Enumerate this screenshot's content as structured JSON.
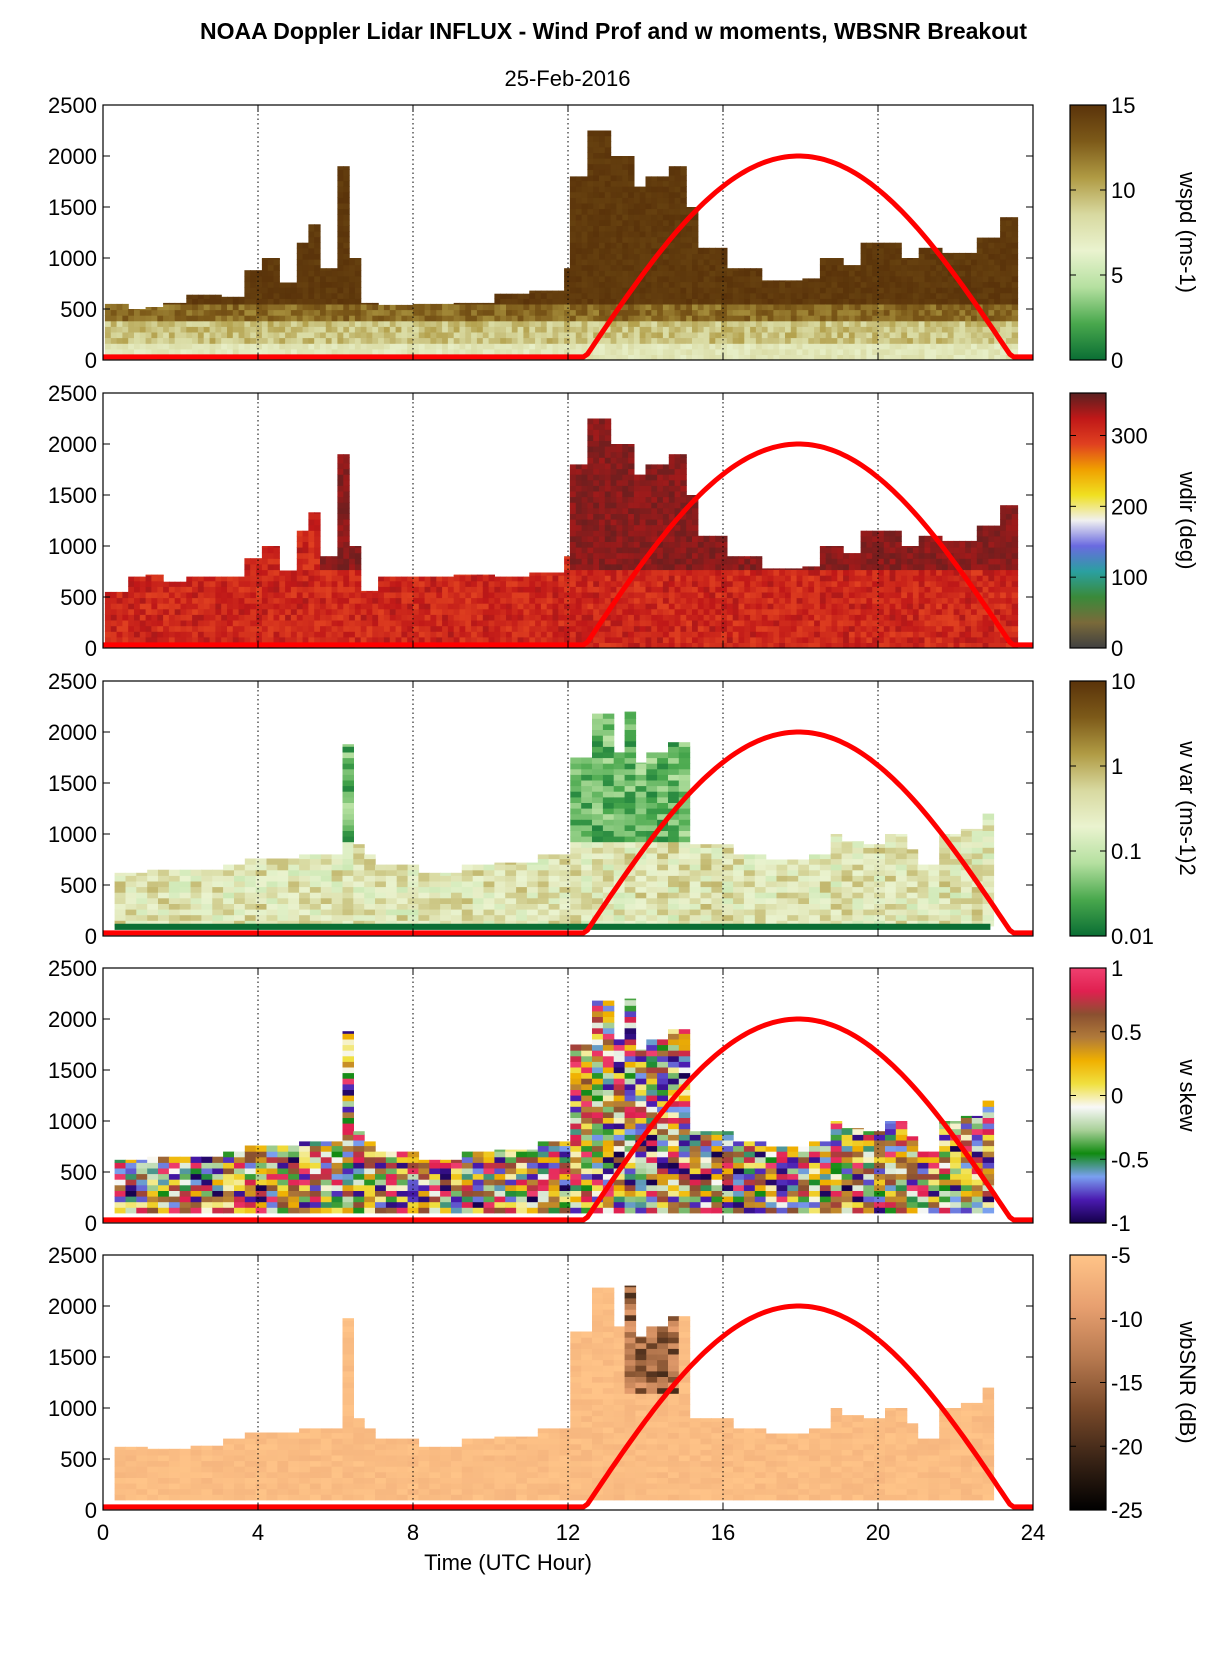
{
  "title": "NOAA Doppler Lidar INFLUX - Wind Prof and w moments, WBSNR Breakout",
  "subtitle": "25-Feb-2016",
  "chart_data": {
    "type": "heatmap",
    "xlabel": "Time (UTC Hour)",
    "xlim": [
      0,
      24
    ],
    "xticks": [
      "0",
      "4",
      "8",
      "12",
      "16",
      "20",
      "24"
    ],
    "ylim": [
      0,
      2500
    ],
    "yticks": [
      "0",
      "500",
      "1000",
      "1500",
      "2000",
      "2500"
    ],
    "grid": "dotted vertical at 4, 8, 12, 16, 20",
    "overlay_curve": {
      "color": "#ff0000",
      "description_points": [
        [
          0,
          30
        ],
        [
          12.5,
          30
        ],
        [
          14,
          760
        ],
        [
          16,
          1700
        ],
        [
          18,
          2000
        ],
        [
          20,
          1700
        ],
        [
          22,
          950
        ],
        [
          23.5,
          30
        ],
        [
          24,
          30
        ]
      ]
    },
    "panels": [
      {
        "id": "wspd",
        "colorbar_label": "wspd (ms-1)",
        "colorbar_ticks": [
          "0",
          "5",
          "10",
          "15"
        ],
        "colorbar_colors": [
          "#0a6e34",
          "#49a84d",
          "#b5e0a0",
          "#eaf3cf",
          "#d8d9a0",
          "#b09b44",
          "#7d5a19",
          "#5a330a"
        ],
        "data_top": [
          [
            0.1,
            550
          ],
          [
            0.5,
            500
          ],
          [
            1,
            520
          ],
          [
            1.5,
            560
          ],
          [
            2,
            640
          ],
          [
            3,
            620
          ],
          [
            3.5,
            880
          ],
          [
            4,
            1000
          ],
          [
            4.5,
            760
          ],
          [
            5,
            1150
          ],
          [
            5.3,
            1330
          ],
          [
            5.6,
            900
          ],
          [
            6,
            1900
          ],
          [
            6.3,
            1000
          ],
          [
            6.6,
            560
          ],
          [
            7,
            540
          ],
          [
            8,
            550
          ],
          [
            9,
            560
          ],
          [
            10,
            650
          ],
          [
            11,
            680
          ],
          [
            11.8,
            900
          ],
          [
            12,
            1800
          ],
          [
            12.5,
            2250
          ],
          [
            13,
            2000
          ],
          [
            13.6,
            1700
          ],
          [
            14,
            1800
          ],
          [
            14.5,
            1900
          ],
          [
            15,
            1500
          ],
          [
            15.3,
            1100
          ],
          [
            16,
            900
          ],
          [
            17,
            780
          ],
          [
            18,
            800
          ],
          [
            18.5,
            1000
          ],
          [
            19,
            930
          ],
          [
            19.5,
            1150
          ],
          [
            20,
            1150
          ],
          [
            20.5,
            1000
          ],
          [
            21,
            1100
          ],
          [
            21.5,
            1050
          ],
          [
            22,
            1050
          ],
          [
            22.5,
            1200
          ],
          [
            23,
            1400
          ],
          [
            23.3,
            1400
          ]
        ],
        "low_band_top_m": 300
      },
      {
        "id": "wdir",
        "colorbar_label": "wdir (deg)",
        "colorbar_ticks": [
          "0",
          "100",
          "200",
          "300"
        ],
        "colorbar_colors": [
          "#404040",
          "#7a6a3a",
          "#3a8a3a",
          "#2aa0a0",
          "#6a6ae0",
          "#f0f0f0",
          "#f0e020",
          "#f0a000",
          "#e04020",
          "#c01818",
          "#5a2020"
        ],
        "data_top": [
          [
            0.1,
            550
          ],
          [
            0.5,
            700
          ],
          [
            1,
            720
          ],
          [
            1.5,
            650
          ],
          [
            2,
            700
          ],
          [
            3,
            700
          ],
          [
            3.5,
            880
          ],
          [
            4,
            1000
          ],
          [
            4.5,
            760
          ],
          [
            5,
            1150
          ],
          [
            5.3,
            1330
          ],
          [
            5.6,
            900
          ],
          [
            6,
            1900
          ],
          [
            6.3,
            1000
          ],
          [
            6.6,
            560
          ],
          [
            7,
            700
          ],
          [
            8,
            700
          ],
          [
            9,
            720
          ],
          [
            10,
            700
          ],
          [
            11,
            740
          ],
          [
            11.8,
            900
          ],
          [
            12,
            1800
          ],
          [
            12.5,
            2250
          ],
          [
            13,
            2000
          ],
          [
            13.6,
            1700
          ],
          [
            14,
            1800
          ],
          [
            14.5,
            1900
          ],
          [
            15,
            1500
          ],
          [
            15.3,
            1100
          ],
          [
            16,
            900
          ],
          [
            17,
            780
          ],
          [
            18,
            800
          ],
          [
            18.5,
            1000
          ],
          [
            19,
            930
          ],
          [
            19.5,
            1150
          ],
          [
            20,
            1150
          ],
          [
            20.5,
            1000
          ],
          [
            21,
            1100
          ],
          [
            21.5,
            1050
          ],
          [
            22,
            1050
          ],
          [
            22.5,
            1200
          ],
          [
            23,
            1400
          ],
          [
            23.3,
            1400
          ]
        ]
      },
      {
        "id": "wvar",
        "colorbar_label": "w var (ms-1)2",
        "colorbar_ticks": [
          "0.01",
          "0.1",
          "1",
          "10"
        ],
        "colorbar_colors": [
          "#0a6e34",
          "#49a84d",
          "#b5e0a0",
          "#eaf3cf",
          "#d8d9a0",
          "#b09b44",
          "#7d5a19",
          "#5a330a"
        ],
        "data_top": [
          [
            0.3,
            620
          ],
          [
            1,
            650
          ],
          [
            2,
            650
          ],
          [
            3,
            700
          ],
          [
            3.5,
            760
          ],
          [
            4,
            760
          ],
          [
            5,
            800
          ],
          [
            6,
            1880
          ],
          [
            6.4,
            900
          ],
          [
            6.7,
            800
          ],
          [
            7,
            700
          ],
          [
            8,
            620
          ],
          [
            9,
            700
          ],
          [
            10,
            720
          ],
          [
            11,
            800
          ],
          [
            11.8,
            1100
          ],
          [
            12,
            1750
          ],
          [
            12.5,
            2180
          ],
          [
            13,
            1800
          ],
          [
            13.3,
            2200
          ],
          [
            13.6,
            1700
          ],
          [
            14,
            1800
          ],
          [
            14.5,
            1900
          ],
          [
            15,
            900
          ],
          [
            16,
            800
          ],
          [
            17,
            750
          ],
          [
            18,
            800
          ],
          [
            18.5,
            1000
          ],
          [
            19,
            930
          ],
          [
            19.5,
            900
          ],
          [
            20,
            1000
          ],
          [
            20.5,
            850
          ],
          [
            21,
            700
          ],
          [
            21.5,
            1000
          ],
          [
            22,
            1050
          ],
          [
            22.5,
            1200
          ],
          [
            22.8,
            1200
          ]
        ]
      },
      {
        "id": "wskew",
        "colorbar_label": "w skew",
        "colorbar_ticks": [
          "-1",
          "-0.5",
          "0",
          "0.5",
          "1"
        ],
        "colorbar_colors": [
          "#14004a",
          "#4a1ab0",
          "#7aa0f0",
          "#108a10",
          "#a8d098",
          "#f8f8f8",
          "#f0e040",
          "#f0b000",
          "#b07a3a",
          "#8a5030",
          "#e02050",
          "#f04070"
        ],
        "data_top": [
          [
            0.3,
            620
          ],
          [
            1,
            650
          ],
          [
            2,
            650
          ],
          [
            3,
            700
          ],
          [
            3.5,
            760
          ],
          [
            4,
            760
          ],
          [
            5,
            800
          ],
          [
            6,
            1880
          ],
          [
            6.4,
            900
          ],
          [
            6.7,
            800
          ],
          [
            7,
            700
          ],
          [
            8,
            620
          ],
          [
            9,
            700
          ],
          [
            10,
            720
          ],
          [
            11,
            800
          ],
          [
            11.8,
            1100
          ],
          [
            12,
            1750
          ],
          [
            12.5,
            2180
          ],
          [
            13,
            1800
          ],
          [
            13.3,
            2200
          ],
          [
            13.6,
            1700
          ],
          [
            14,
            1800
          ],
          [
            14.5,
            1900
          ],
          [
            15,
            900
          ],
          [
            16,
            800
          ],
          [
            17,
            750
          ],
          [
            18,
            800
          ],
          [
            18.5,
            1000
          ],
          [
            19,
            930
          ],
          [
            19.5,
            900
          ],
          [
            20,
            1000
          ],
          [
            20.5,
            850
          ],
          [
            21,
            700
          ],
          [
            21.5,
            1000
          ],
          [
            22,
            1050
          ],
          [
            22.5,
            1200
          ],
          [
            22.8,
            1200
          ]
        ]
      },
      {
        "id": "wbsnr",
        "colorbar_label": "wbSNR (dB)",
        "colorbar_ticks": [
          "-25",
          "-20",
          "-15",
          "-10",
          "-5"
        ],
        "colorbar_colors": [
          "#000000",
          "#3a2416",
          "#7a4a2a",
          "#b87a50",
          "#e8a070",
          "#ffc488"
        ],
        "data_top": [
          [
            0.3,
            620
          ],
          [
            1,
            600
          ],
          [
            2,
            630
          ],
          [
            3,
            700
          ],
          [
            3.5,
            760
          ],
          [
            4,
            760
          ],
          [
            5,
            800
          ],
          [
            6,
            1880
          ],
          [
            6.4,
            900
          ],
          [
            6.7,
            800
          ],
          [
            7,
            700
          ],
          [
            8,
            620
          ],
          [
            9,
            700
          ],
          [
            10,
            720
          ],
          [
            11,
            800
          ],
          [
            11.8,
            1100
          ],
          [
            12,
            1750
          ],
          [
            12.5,
            2180
          ],
          [
            13,
            1800
          ],
          [
            13.3,
            2200
          ],
          [
            13.6,
            1700
          ],
          [
            14,
            1800
          ],
          [
            14.5,
            1900
          ],
          [
            15,
            900
          ],
          [
            16,
            800
          ],
          [
            17,
            750
          ],
          [
            18,
            800
          ],
          [
            18.5,
            1000
          ],
          [
            19,
            930
          ],
          [
            19.5,
            900
          ],
          [
            20,
            1000
          ],
          [
            20.5,
            850
          ],
          [
            21,
            700
          ],
          [
            21.5,
            1000
          ],
          [
            22,
            1050
          ],
          [
            22.5,
            1200
          ],
          [
            22.8,
            1200
          ]
        ]
      }
    ]
  }
}
